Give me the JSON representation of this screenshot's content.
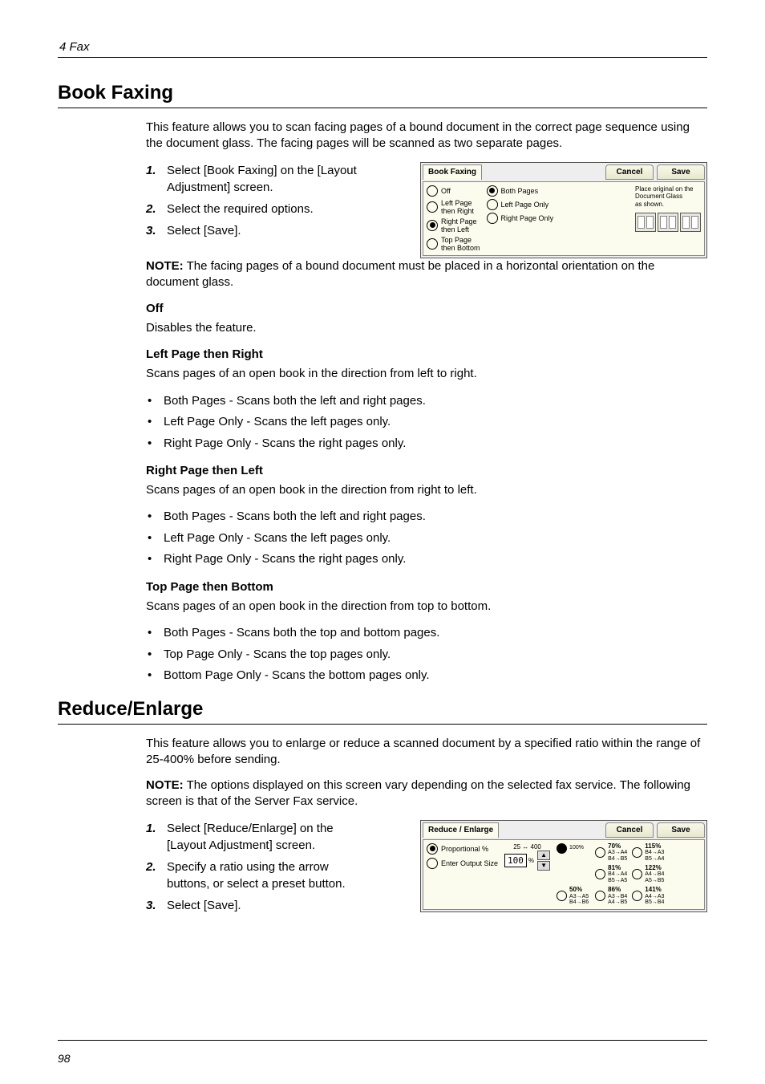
{
  "header_running": "4 Fax",
  "page_number": "98",
  "section1": {
    "title": "Book Faxing",
    "intro": "This feature allows you to scan facing pages of a bound document in the correct page sequence using the document glass. The facing pages will be scanned as two separate pages.",
    "steps": [
      "Select [Book Faxing] on the [Layout Adjustment] screen.",
      "Select the required options.",
      "Select [Save]."
    ],
    "note_label": "NOTE:",
    "note_text": " The facing pages of a bound document must be placed in a horizontal orientation on the document glass.",
    "off_head": "Off",
    "off_body": "Disables the feature.",
    "lpr_head": "Left Page then Right",
    "lpr_body": "Scans pages of an open book in the direction from left to right.",
    "lpr_items": [
      "Both Pages - Scans both the left and right pages.",
      "Left Page Only - Scans the left pages only.",
      "Right Page Only - Scans the right pages only."
    ],
    "rpl_head": "Right Page then Left",
    "rpl_body": "Scans pages of an open book in the direction from right to left.",
    "rpl_items": [
      "Both Pages - Scans both the left and right pages.",
      "Left Page Only - Scans the left pages only.",
      "Right Page Only - Scans the right pages only."
    ],
    "tpb_head": "Top Page then Bottom",
    "tpb_body": "Scans pages of an open book in the direction from top to bottom.",
    "tpb_items": [
      "Both Pages - Scans both the top and bottom pages.",
      "Top Page Only - Scans the top pages only.",
      "Bottom Page Only - Scans the bottom pages only."
    ]
  },
  "bf_dialog": {
    "title": "Book Faxing",
    "cancel": "Cancel",
    "save": "Save",
    "options": [
      "Off",
      "Left Page\nthen Right",
      "Right Page\nthen Left",
      "Top Page\nthen Bottom"
    ],
    "sub_options": [
      "Both Pages",
      "Left Page Only",
      "Right Page Only"
    ],
    "info_line1": "Place original on the",
    "info_line2": "Document Glass",
    "info_line3": "as shown."
  },
  "section2": {
    "title": "Reduce/Enlarge",
    "intro": "This feature allows you to enlarge or reduce a scanned document by a specified ratio within the range of 25-400% before sending.",
    "note_label": "NOTE:",
    "note_text": " The options displayed on this screen vary depending on the selected fax service. The following screen is that of the Server Fax service.",
    "steps": [
      "Select [Reduce/Enlarge] on the [Layout Adjustment] screen.",
      "Specify a ratio using the arrow buttons, or select a preset button.",
      "Select [Save]."
    ]
  },
  "re_dialog": {
    "title": "Reduce / Enlarge",
    "cancel": "Cancel",
    "save": "Save",
    "left_options": [
      "Proportional %",
      "Enter Output Size"
    ],
    "range": "25 ↔ 400",
    "counter": "100",
    "pct": "%",
    "hundred": "100%",
    "fifty_head": "50%",
    "fifty_sub": "A3→A5\nB4→B6",
    "col1": [
      {
        "head": "70%",
        "sub": "A3→A4\nB4→B5"
      },
      {
        "head": "81%",
        "sub": "B4→A4\nB5→A5"
      },
      {
        "head": "86%",
        "sub": "A3→B4\nA4→B5"
      }
    ],
    "col2": [
      {
        "head": "115%",
        "sub": "B4→A3\nB5→A4"
      },
      {
        "head": "122%",
        "sub": "A4→B4\nA5→B5"
      },
      {
        "head": "141%",
        "sub": "A4→A3\nB5→B4"
      }
    ]
  }
}
